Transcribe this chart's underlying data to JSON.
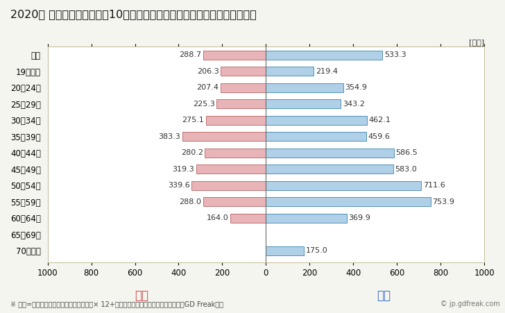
{
  "title": "2020年 民間企業（従業者数10人以上）フルタイム労働者の男女別平均年収",
  "ylabel_unit": "[万円]",
  "categories": [
    "全体",
    "19歳以下",
    "20〜24歳",
    "25〜29歳",
    "30〜34歳",
    "35〜39歳",
    "40〜44歳",
    "45〜49歳",
    "50〜54歳",
    "55〜59歳",
    "60〜64歳",
    "65〜69歳",
    "70歳以上"
  ],
  "female_values": [
    288.7,
    206.3,
    207.4,
    225.3,
    275.1,
    383.3,
    280.2,
    319.3,
    339.6,
    288.0,
    164.0,
    0,
    0
  ],
  "male_values": [
    533.3,
    219.4,
    354.9,
    343.2,
    462.1,
    459.6,
    586.5,
    583.0,
    711.6,
    753.9,
    369.9,
    0,
    175.0
  ],
  "female_color": "#e8b4b8",
  "male_color": "#b0d0e8",
  "female_border_color": "#c07070",
  "male_border_color": "#5090b8",
  "xlim": [
    -1000,
    1000
  ],
  "xticks": [
    -1000,
    -800,
    -600,
    -400,
    -200,
    0,
    200,
    400,
    600,
    800,
    1000
  ],
  "xticklabels": [
    "1000",
    "800",
    "600",
    "400",
    "200",
    "0",
    "200",
    "400",
    "600",
    "800",
    "1000"
  ],
  "female_label": "女性",
  "male_label": "男性",
  "female_label_color": "#cc4444",
  "male_label_color": "#3366cc",
  "footnote": "※ 年収=「きまって支給する現金給与額」× 12+「年間賞与その他特別給与額」としてGD Freak推計",
  "watermark": "© jp.gdfreak.com",
  "bg_color": "#f5f5ef",
  "plot_bg_color": "#ffffff",
  "bar_height": 0.55,
  "title_fontsize": 11.5,
  "tick_fontsize": 8.5,
  "value_fontsize": 8,
  "footnote_fontsize": 7,
  "legend_fontsize": 12
}
